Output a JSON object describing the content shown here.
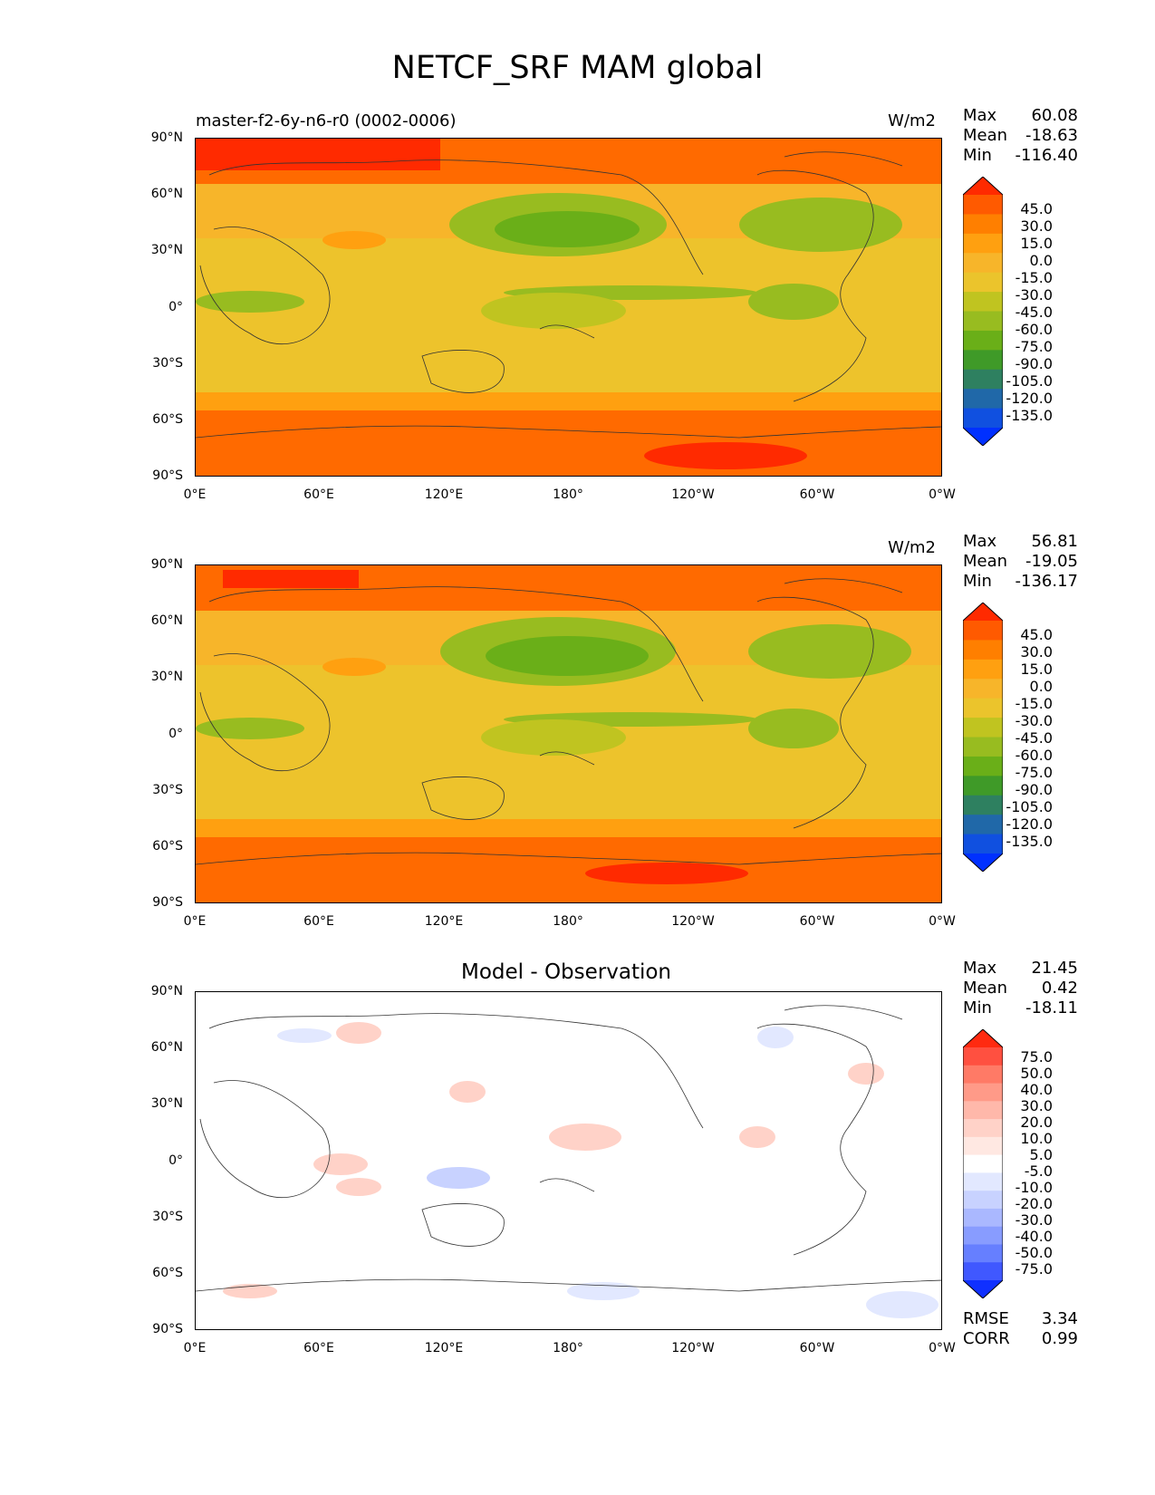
{
  "title": "NETCF_SRF MAM global",
  "icon_names": [
    "coastline-map",
    "colorbar-extend-arrows"
  ],
  "axes": {
    "y_ticks": [
      "90°N",
      "60°N",
      "30°N",
      "0°",
      "30°S",
      "60°S",
      "90°S"
    ],
    "x_ticks": [
      "0°E",
      "60°E",
      "120°E",
      "180°",
      "120°W",
      "60°W",
      "0°W"
    ]
  },
  "panels": [
    {
      "subtitle_left": "master-f2-6y-n6-r0 (0002-0006)",
      "units": "W/m2",
      "panel_title": "",
      "stats": {
        "max_label": "Max",
        "max": "60.08",
        "mean_label": "Mean",
        "mean": "-18.63",
        "min_label": "Min",
        "min": "-116.40"
      },
      "colorbar": {
        "labels": [
          "45.0",
          "30.0",
          "15.0",
          "0.0",
          "-15.0",
          "-30.0",
          "-45.0",
          "-60.0",
          "-75.0",
          "-90.0",
          "-105.0",
          "-120.0",
          "-135.0"
        ],
        "colors": [
          "#ff2a00",
          "#ff5a00",
          "#ff7f00",
          "#ffa010",
          "#f7b52a",
          "#ebc42c",
          "#c0c420",
          "#98bc20",
          "#6aaf18",
          "#3f9a28",
          "#2e8060",
          "#2068a8",
          "#1050e0",
          "#0030ff"
        ]
      }
    },
    {
      "subtitle_left": "",
      "units": "W/m2",
      "panel_title": "",
      "stats": {
        "max_label": "Max",
        "max": "56.81",
        "mean_label": "Mean",
        "mean": "-19.05",
        "min_label": "Min",
        "min": "-136.17"
      },
      "colorbar": {
        "labels": [
          "45.0",
          "30.0",
          "15.0",
          "0.0",
          "-15.0",
          "-30.0",
          "-45.0",
          "-60.0",
          "-75.0",
          "-90.0",
          "-105.0",
          "-120.0",
          "-135.0"
        ],
        "colors": [
          "#ff2a00",
          "#ff5a00",
          "#ff7f00",
          "#ffa010",
          "#f7b52a",
          "#ebc42c",
          "#c0c420",
          "#98bc20",
          "#6aaf18",
          "#3f9a28",
          "#2e8060",
          "#2068a8",
          "#1050e0",
          "#0030ff"
        ]
      }
    },
    {
      "subtitle_left": "",
      "units": "",
      "panel_title": "Model - Observation",
      "stats": {
        "max_label": "Max",
        "max": "21.45",
        "mean_label": "Mean",
        "mean": "0.42",
        "min_label": "Min",
        "min": "-18.11"
      },
      "metrics": {
        "rmse_label": "RMSE",
        "rmse": "3.34",
        "corr_label": "CORR",
        "corr": "0.99"
      },
      "colorbar": {
        "labels": [
          "75.0",
          "50.0",
          "40.0",
          "30.0",
          "20.0",
          "10.0",
          "5.0",
          "-5.0",
          "-10.0",
          "-20.0",
          "-30.0",
          "-40.0",
          "-50.0",
          "-75.0"
        ],
        "colors": [
          "#ff2a10",
          "#ff5040",
          "#ff7a66",
          "#ff9a88",
          "#ffb8aa",
          "#ffd2c8",
          "#ffe8e2",
          "#ffffff",
          "#e2e8ff",
          "#c8d2ff",
          "#aab8ff",
          "#889cff",
          "#667fff",
          "#4058ff",
          "#1030ff"
        ]
      }
    }
  ]
}
